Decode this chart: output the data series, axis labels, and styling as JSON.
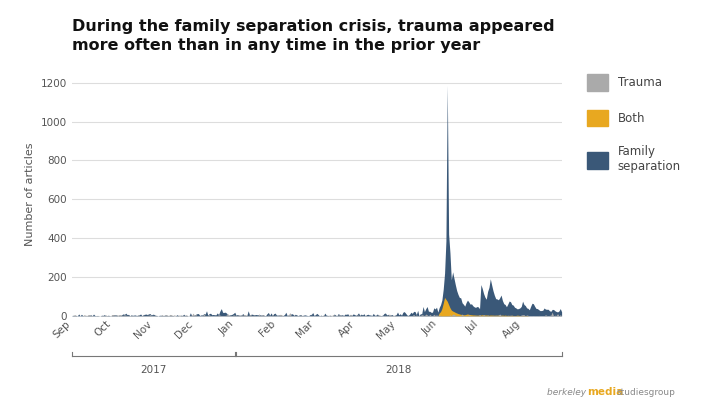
{
  "title": "During the family separation crisis, trauma appeared\nmore often than in any time in the prior year",
  "ylabel": "Number of articles",
  "background_color": "#ffffff",
  "plot_bg_color": "#ffffff",
  "family_sep_color": "#3a5878",
  "both_color": "#e8a820",
  "trauma_color": "#aaaaaa",
  "grid_color": "#dddddd",
  "tick_labels": [
    "Sep",
    "Oct",
    "Nov",
    "Dec",
    "Jan",
    "Feb",
    "Mar",
    "Apr",
    "May",
    "Jun",
    "Jul",
    "Aug"
  ],
  "year_2017_label": "2017",
  "year_2018_label": "2018",
  "ylim": [
    0,
    1250
  ],
  "yticks": [
    0,
    200,
    400,
    600,
    800,
    1000,
    1200
  ],
  "n_points": 365
}
